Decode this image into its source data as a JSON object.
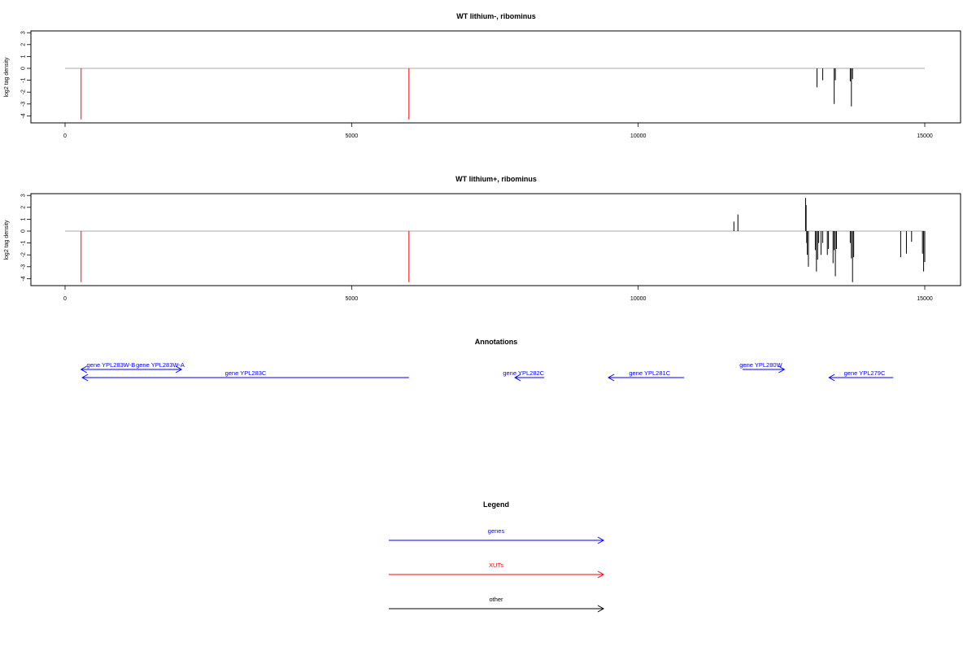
{
  "colors": {
    "genes": "#0000ff",
    "xuts": "#ff0000",
    "other": "#000000",
    "baseline": "#aaaaaa",
    "frame": "#000000"
  },
  "chart_data": [
    {
      "type": "bar",
      "title": "WT lithium-, ribominus",
      "ylabel": "log2 tag density",
      "xlim": [
        0,
        15000
      ],
      "ylim": [
        -4.5,
        3.2
      ],
      "xticks": [
        0,
        5000,
        10000,
        15000
      ],
      "yticks": [
        3,
        2,
        1,
        0,
        -1,
        -2,
        -3,
        -4
      ],
      "baseline_x": [
        0,
        15000
      ],
      "xut_marks": [
        {
          "x": 280,
          "y": -4.3
        },
        {
          "x": 6000,
          "y": -4.3
        }
      ],
      "series": [
        {
          "values": [
            [
              13120,
              -1.6
            ],
            [
              13220,
              -1.0
            ],
            [
              13420,
              -3.0
            ],
            [
              13440,
              -1.0
            ],
            [
              13700,
              -1.1
            ],
            [
              13720,
              -3.2
            ],
            [
              13740,
              -0.9
            ]
          ]
        }
      ]
    },
    {
      "type": "bar",
      "title": "WT lithium+, ribominus",
      "ylabel": "log2 tag density",
      "xlim": [
        0,
        15000
      ],
      "ylim": [
        -4.5,
        3.2
      ],
      "xticks": [
        0,
        5000,
        10000,
        15000
      ],
      "yticks": [
        3,
        2,
        1,
        0,
        -1,
        -2,
        -3,
        -4
      ],
      "baseline_x": [
        0,
        15000
      ],
      "xut_marks": [
        {
          "x": 280,
          "y": -4.3
        },
        {
          "x": 6000,
          "y": -4.3
        }
      ],
      "series": [
        {
          "values": [
            [
              11670,
              0.8
            ],
            [
              11740,
              1.4
            ],
            [
              12920,
              2.8
            ],
            [
              12930,
              2.2
            ],
            [
              12940,
              -1.0
            ],
            [
              12950,
              -2.0
            ],
            [
              12970,
              -3.0
            ],
            [
              13090,
              -1.6
            ],
            [
              13110,
              -3.4
            ],
            [
              13130,
              -2.4
            ],
            [
              13150,
              -1.0
            ],
            [
              13190,
              -2.0
            ],
            [
              13220,
              -1.0
            ],
            [
              13300,
              -2.0
            ],
            [
              13320,
              -1.5
            ],
            [
              13400,
              -2.7
            ],
            [
              13420,
              -1.6
            ],
            [
              13440,
              -3.8
            ],
            [
              13460,
              -1.5
            ],
            [
              13700,
              -1.0
            ],
            [
              13720,
              -2.3
            ],
            [
              13740,
              -4.3
            ],
            [
              13760,
              -2.2
            ],
            [
              14580,
              -2.2
            ],
            [
              14680,
              -1.9
            ],
            [
              14770,
              -0.9
            ],
            [
              14960,
              -1.9
            ],
            [
              14980,
              -3.4
            ],
            [
              15000,
              -2.6
            ]
          ]
        }
      ]
    }
  ],
  "annotations": {
    "title": "Annotations",
    "genes": [
      {
        "label": "gene YPL283W-B",
        "start": 280,
        "end": 1150,
        "direction": "left",
        "row": 1,
        "label_x": 800
      },
      {
        "label": "gene YPL283W-A",
        "start": 1150,
        "end": 2030,
        "direction": "right",
        "row": 1,
        "label_x": 1660
      },
      {
        "label": "gene YPL283C",
        "start": 300,
        "end": 6000,
        "direction": "left",
        "row": 2,
        "label_x": 3150
      },
      {
        "label": "gene YPL282C",
        "start": 7850,
        "end": 8360,
        "direction": "left",
        "row": 2,
        "label_x": 8000
      },
      {
        "label": "gene YPL281C",
        "start": 9480,
        "end": 10800,
        "direction": "left",
        "row": 2,
        "label_x": 10200
      },
      {
        "label": "gene YPL280W",
        "start": 11820,
        "end": 12550,
        "direction": "right",
        "row": 1,
        "label_x": 12140
      },
      {
        "label": "gene YPL279C",
        "start": 13330,
        "end": 14450,
        "direction": "left",
        "row": 2,
        "label_x": 13950
      }
    ]
  },
  "legend": {
    "title": "Legend",
    "items": [
      {
        "label": "genes",
        "color": "#0000ff"
      },
      {
        "label": "XUTs",
        "color": "#ff0000"
      },
      {
        "label": "other",
        "color": "#000000"
      }
    ]
  }
}
